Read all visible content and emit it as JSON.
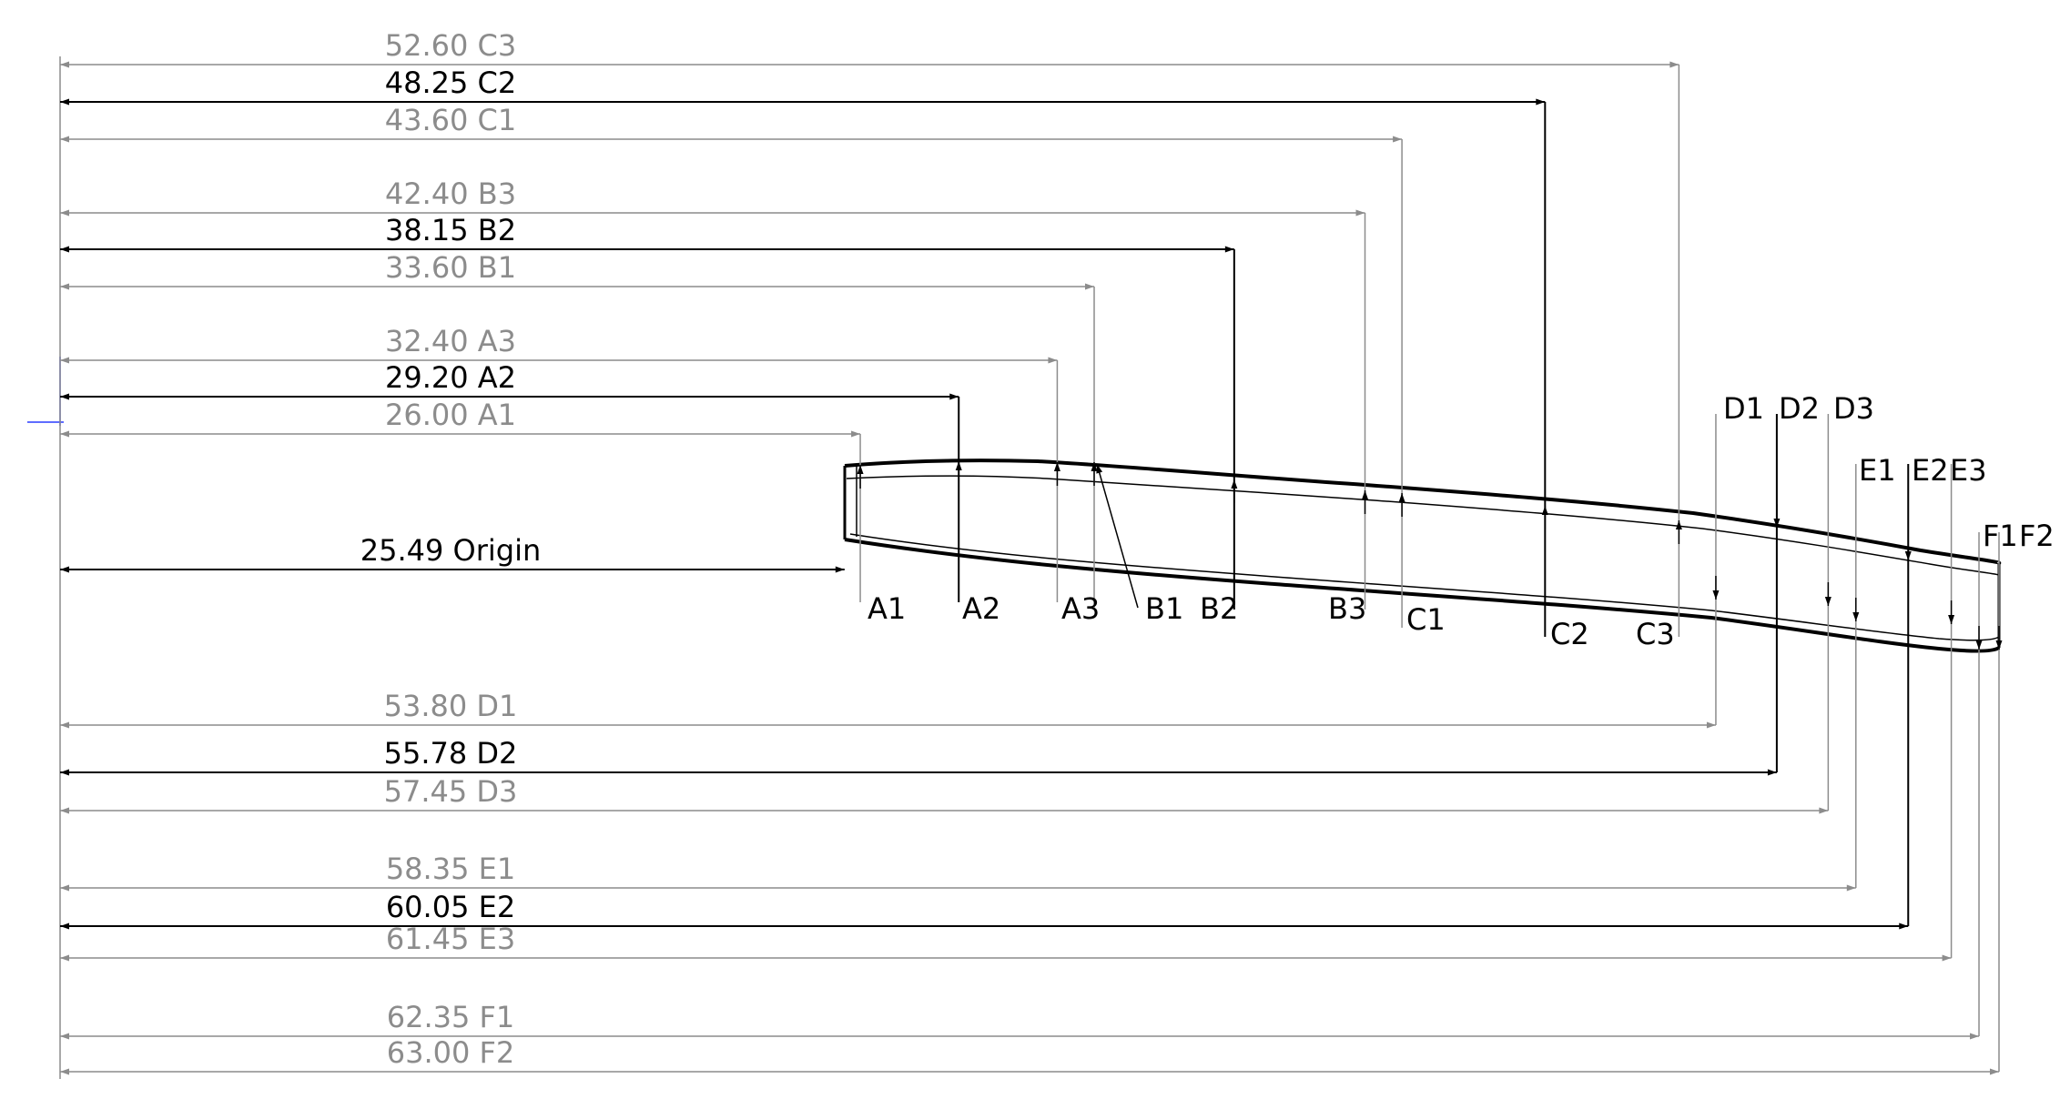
{
  "colors": {
    "background": "#ffffff",
    "primary_line": "#000000",
    "secondary_line": "#8c8c8c",
    "origin_marker": "#2a3cff"
  },
  "dimensions": [
    {
      "id": "C3",
      "label": "52.60 C3",
      "value": 52.6,
      "emphasis": false
    },
    {
      "id": "C2",
      "label": "48.25 C2",
      "value": 48.25,
      "emphasis": true
    },
    {
      "id": "C1",
      "label": "43.60 C1",
      "value": 43.6,
      "emphasis": false
    },
    {
      "id": "B3",
      "label": "42.40 B3",
      "value": 42.4,
      "emphasis": false
    },
    {
      "id": "B2",
      "label": "38.15 B2",
      "value": 38.15,
      "emphasis": true
    },
    {
      "id": "B1",
      "label": "33.60 B1",
      "value": 33.6,
      "emphasis": false
    },
    {
      "id": "A3",
      "label": "32.40 A3",
      "value": 32.4,
      "emphasis": false
    },
    {
      "id": "A2",
      "label": "29.20 A2",
      "value": 29.2,
      "emphasis": true
    },
    {
      "id": "A1",
      "label": "26.00 A1",
      "value": 26.0,
      "emphasis": false
    },
    {
      "id": "Origin",
      "label": "25.49 Origin",
      "value": 25.49,
      "emphasis": true
    },
    {
      "id": "D1",
      "label": "53.80 D1",
      "value": 53.8,
      "emphasis": false
    },
    {
      "id": "D2",
      "label": "55.78 D2",
      "value": 55.78,
      "emphasis": true
    },
    {
      "id": "D3",
      "label": "57.45 D3",
      "value": 57.45,
      "emphasis": false
    },
    {
      "id": "E1",
      "label": "58.35 E1",
      "value": 58.35,
      "emphasis": false
    },
    {
      "id": "E2",
      "label": "60.05 E2",
      "value": 60.05,
      "emphasis": true
    },
    {
      "id": "E3",
      "label": "61.45 E3",
      "value": 61.45,
      "emphasis": false
    },
    {
      "id": "F1",
      "label": "62.35 F1",
      "value": 62.35,
      "emphasis": false
    },
    {
      "id": "F2",
      "label": "63.00 F2",
      "value": 63.0,
      "emphasis": false
    }
  ],
  "point_labels": [
    "A1",
    "A2",
    "A3",
    "B1",
    "B2",
    "B3",
    "C1",
    "C2",
    "C3",
    "D1",
    "D2",
    "D3",
    "E1",
    "E2",
    "E3",
    "F1",
    "F2"
  ]
}
